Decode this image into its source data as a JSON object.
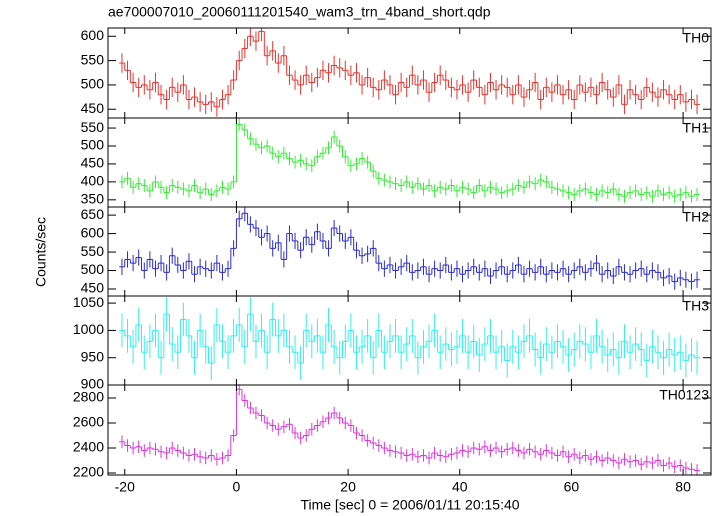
{
  "chart_data": {
    "type": "step",
    "title": "ae700007010_20060111201540_wam3_trn_4band_short.qdp",
    "xlabel": "Time [sec] 0 = 2006/01/11 20:15:40",
    "ylabel": "Counts/sec",
    "xlim": [
      -23,
      85
    ],
    "xticks": [
      -20,
      0,
      20,
      40,
      60,
      80
    ],
    "bins": [
      -21,
      -20,
      -19,
      -18,
      -17,
      -16,
      -15,
      -14,
      -13,
      -12,
      -11,
      -10,
      -9,
      -8,
      -7,
      -6,
      -5,
      -4,
      -3,
      -2,
      -1,
      0,
      1,
      2,
      3,
      4,
      5,
      6,
      7,
      8,
      9,
      10,
      11,
      12,
      13,
      14,
      15,
      16,
      17,
      18,
      19,
      20,
      21,
      22,
      23,
      24,
      25,
      26,
      27,
      28,
      29,
      30,
      31,
      32,
      33,
      34,
      35,
      36,
      37,
      38,
      39,
      40,
      41,
      42,
      43,
      44,
      45,
      46,
      47,
      48,
      49,
      50,
      51,
      52,
      53,
      54,
      55,
      56,
      57,
      58,
      59,
      60,
      61,
      62,
      63,
      64,
      65,
      66,
      67,
      68,
      69,
      70,
      71,
      72,
      73,
      74,
      75,
      76,
      77,
      78,
      79,
      80,
      81,
      82,
      83
    ],
    "panels": [
      {
        "name": "TH0",
        "color": "#e8332e",
        "ylim": [
          432,
          617
        ],
        "yticks": [
          450,
          500,
          550,
          600
        ],
        "error": 20,
        "values": [
          545,
          530,
          505,
          495,
          500,
          490,
          505,
          480,
          470,
          495,
          485,
          500,
          470,
          475,
          465,
          460,
          465,
          455,
          470,
          480,
          510,
          550,
          575,
          600,
          590,
          610,
          560,
          570,
          545,
          560,
          520,
          510,
          500,
          520,
          505,
          515,
          530,
          525,
          540,
          535,
          530,
          520,
          525,
          500,
          515,
          495,
          490,
          510,
          500,
          480,
          505,
          495,
          520,
          500,
          510,
          485,
          505,
          520,
          510,
          495,
          490,
          500,
          485,
          510,
          495,
          480,
          505,
          490,
          500,
          495,
          480,
          500,
          475,
          490,
          505,
          470,
          495,
          485,
          500,
          480,
          490,
          470,
          500,
          485,
          495,
          480,
          505,
          490,
          475,
          500,
          460,
          490,
          480,
          470,
          495,
          485,
          475,
          490,
          480,
          470,
          480,
          465,
          470,
          460
        ]
      },
      {
        "name": "TH1",
        "color": "#33ee33",
        "ylim": [
          330,
          578
        ],
        "yticks": [
          350,
          400,
          450,
          500,
          550
        ],
        "error": 18,
        "values": [
          400,
          410,
          385,
          395,
          390,
          375,
          400,
          385,
          370,
          390,
          385,
          380,
          375,
          390,
          370,
          380,
          365,
          375,
          385,
          380,
          400,
          560,
          545,
          520,
          505,
          495,
          500,
          480,
          470,
          480,
          465,
          455,
          460,
          450,
          445,
          470,
          480,
          495,
          525,
          500,
          470,
          445,
          450,
          465,
          455,
          430,
          410,
          405,
          400,
          395,
          390,
          400,
          385,
          395,
          380,
          390,
          375,
          385,
          380,
          390,
          375,
          385,
          380,
          370,
          390,
          375,
          385,
          380,
          370,
          375,
          380,
          390,
          385,
          400,
          395,
          405,
          400,
          385,
          380,
          375,
          370,
          365,
          375,
          380,
          370,
          365,
          375,
          370,
          380,
          365,
          360,
          370,
          375,
          365,
          370,
          360,
          375,
          365,
          370,
          360,
          365,
          370,
          360,
          365
        ]
      },
      {
        "name": "TH2",
        "color": "#2a2ad0",
        "ylim": [
          431,
          672
        ],
        "yticks": [
          450,
          500,
          550,
          600,
          650
        ],
        "error": 22,
        "values": [
          510,
          530,
          520,
          535,
          500,
          530,
          505,
          520,
          495,
          540,
          515,
          500,
          525,
          490,
          510,
          505,
          500,
          520,
          495,
          505,
          560,
          640,
          655,
          625,
          615,
          590,
          600,
          560,
          575,
          530,
          600,
          580,
          555,
          590,
          570,
          605,
          580,
          560,
          615,
          600,
          580,
          590,
          555,
          540,
          545,
          560,
          520,
          505,
          515,
          500,
          510,
          520,
          495,
          500,
          510,
          490,
          505,
          500,
          515,
          495,
          505,
          490,
          500,
          510,
          495,
          505,
          485,
          500,
          510,
          490,
          500,
          515,
          490,
          505,
          495,
          510,
          490,
          500,
          495,
          505,
          490,
          500,
          510,
          495,
          505,
          520,
          490,
          500,
          485,
          510,
          495,
          490,
          500,
          505,
          490,
          500,
          495,
          480,
          485,
          470,
          480,
          475,
          470,
          475
        ]
      },
      {
        "name": "TH3",
        "color": "#33eeee",
        "ylim": [
          900,
          1063
        ],
        "yticks": [
          900,
          950,
          1000,
          1050
        ],
        "error": 31,
        "values": [
          1000,
          990,
          970,
          1010,
          960,
          980,
          1000,
          950,
          1030,
          975,
          960,
          1020,
          990,
          950,
          1000,
          970,
          940,
          1010,
          980,
          960,
          990,
          1010,
          970,
          1030,
          980,
          1000,
          960,
          1020,
          990,
          1000,
          970,
          960,
          940,
          1000,
          980,
          990,
          960,
          1010,
          970,
          950,
          980,
          1000,
          960,
          970,
          990,
          950,
          1000,
          960,
          980,
          990,
          960,
          975,
          990,
          950,
          970,
          980,
          1000,
          960,
          975,
          965,
          970,
          990,
          960,
          980,
          955,
          975,
          990,
          960,
          970,
          945,
          970,
          960,
          980,
          990,
          965,
          950,
          975,
          960,
          980,
          970,
          955,
          965,
          980,
          975,
          960,
          990,
          970,
          955,
          965,
          950,
          980,
          960,
          975,
          965,
          945,
          970,
          960,
          950,
          965,
          955,
          960,
          945,
          955,
          950
        ]
      },
      {
        "name": "TH0123",
        "color": "#e033e0",
        "ylim": [
          2184,
          2904
        ],
        "yticks": [
          2200,
          2400,
          2600,
          2800
        ],
        "error": 50,
        "values": [
          2450,
          2420,
          2400,
          2410,
          2380,
          2400,
          2390,
          2370,
          2360,
          2400,
          2380,
          2360,
          2340,
          2350,
          2330,
          2320,
          2340,
          2310,
          2320,
          2340,
          2500,
          2870,
          2780,
          2720,
          2680,
          2660,
          2600,
          2580,
          2550,
          2570,
          2590,
          2520,
          2480,
          2500,
          2550,
          2580,
          2610,
          2640,
          2680,
          2640,
          2600,
          2580,
          2520,
          2500,
          2460,
          2440,
          2420,
          2400,
          2380,
          2370,
          2360,
          2340,
          2350,
          2330,
          2340,
          2320,
          2360,
          2340,
          2330,
          2350,
          2360,
          2380,
          2370,
          2400,
          2390,
          2410,
          2380,
          2400,
          2370,
          2390,
          2400,
          2380,
          2360,
          2390,
          2370,
          2350,
          2380,
          2360,
          2340,
          2370,
          2330,
          2350,
          2320,
          2340,
          2310,
          2330,
          2300,
          2320,
          2300,
          2280,
          2310,
          2290,
          2300,
          2270,
          2290,
          2280,
          2300,
          2260,
          2280,
          2250,
          2260,
          2240,
          2230,
          2220
        ]
      }
    ]
  }
}
